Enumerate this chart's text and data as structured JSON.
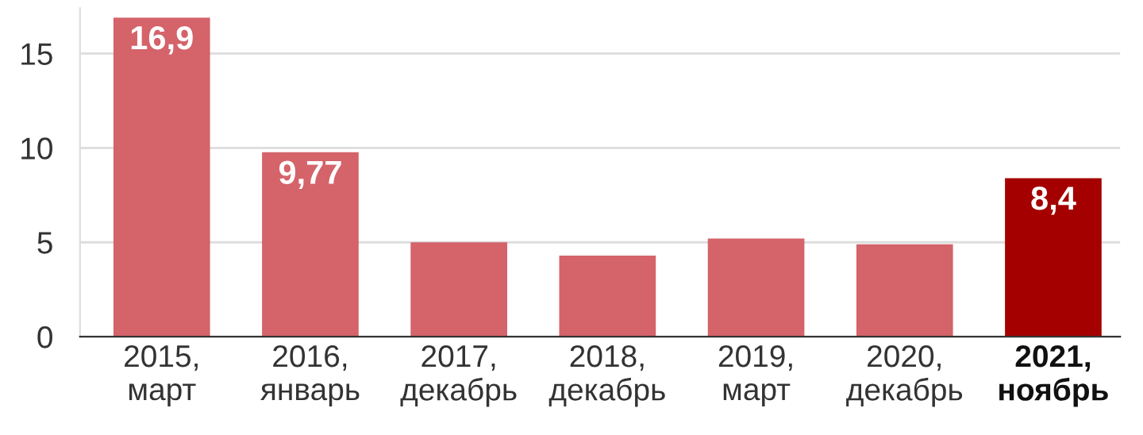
{
  "chart_data": {
    "type": "bar",
    "categories": [
      "2015,\nмарт",
      "2016,\nянварь",
      "2017,\nдекабрь",
      "2018,\nдекабрь",
      "2019,\nмарт",
      "2020,\nдекабрь",
      "2021,\nноябрь"
    ],
    "values": [
      16.9,
      9.77,
      5.0,
      4.3,
      5.2,
      4.9,
      8.4
    ],
    "colors": [
      "#d4636a",
      "#d4636a",
      "#d4636a",
      "#d4636a",
      "#d4636a",
      "#d4636a",
      "#a50000"
    ],
    "value_labels": [
      "16,9",
      "9,77",
      null,
      null,
      null,
      null,
      "8,4"
    ],
    "ylim": [
      0,
      17.4
    ],
    "yticks": [
      0,
      5,
      10,
      15
    ],
    "grid": "y",
    "legend": false
  }
}
